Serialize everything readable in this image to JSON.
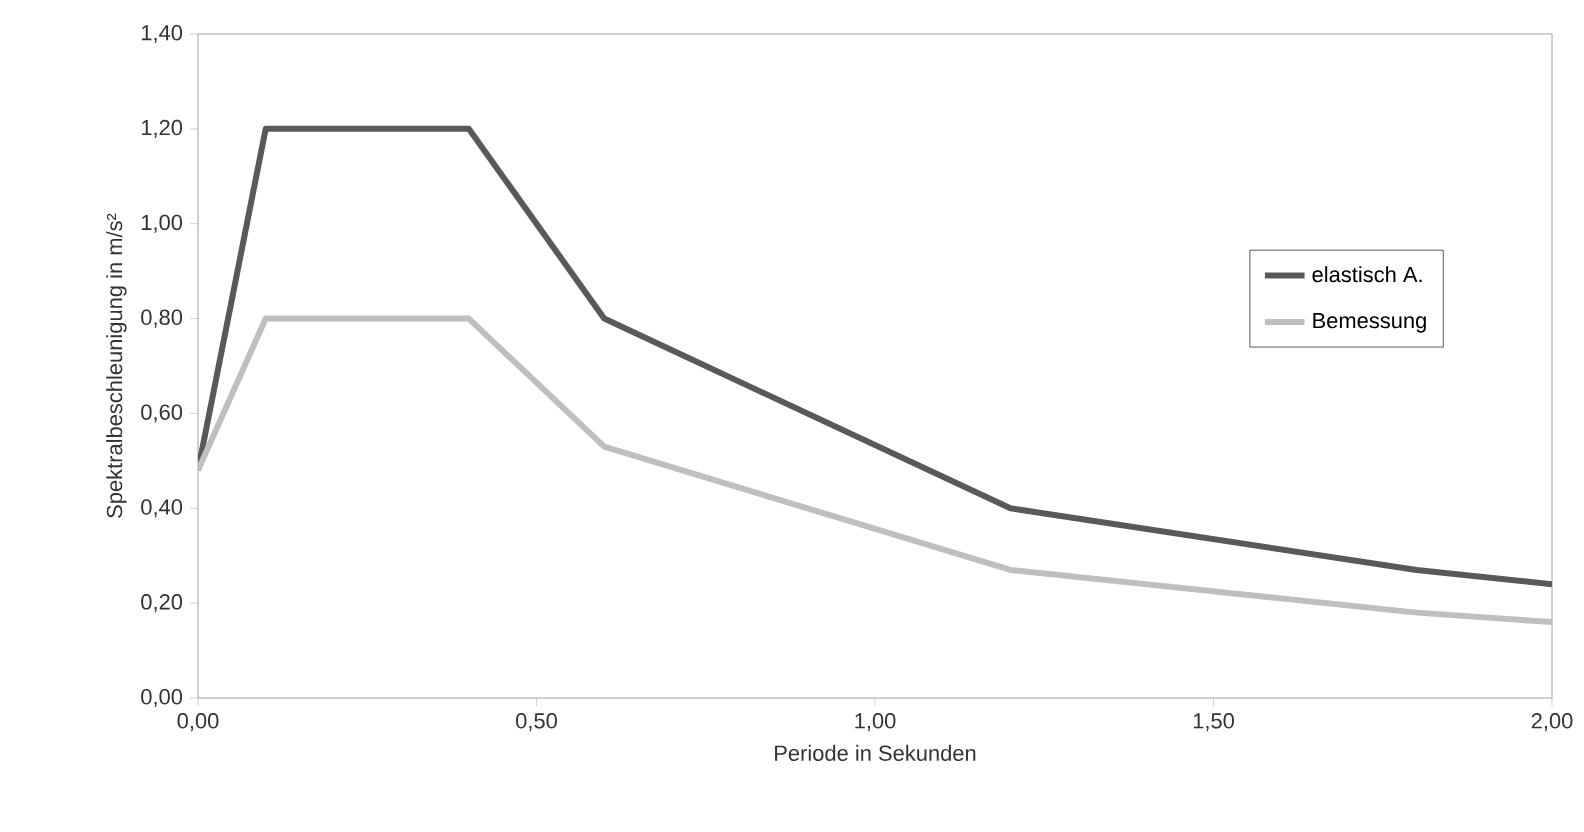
{
  "chart_data": {
    "type": "line",
    "xlabel": "Periode in Sekunden",
    "ylabel": "Spektralbeschleunigung in m/s²",
    "xlim": [
      0,
      2
    ],
    "ylim": [
      0,
      1.4
    ],
    "xticks": [
      {
        "value": 0,
        "label": "0,00"
      },
      {
        "value": 0.5,
        "label": "0,50"
      },
      {
        "value": 1,
        "label": "1,00"
      },
      {
        "value": 1.5,
        "label": "1,50"
      },
      {
        "value": 2,
        "label": "2,00"
      }
    ],
    "yticks": [
      {
        "value": 0,
        "label": "0,00"
      },
      {
        "value": 0.2,
        "label": "0,20"
      },
      {
        "value": 0.4,
        "label": "0,40"
      },
      {
        "value": 0.6,
        "label": "0,60"
      },
      {
        "value": 0.8,
        "label": "0,80"
      },
      {
        "value": 1,
        "label": "1,00"
      },
      {
        "value": 1.2,
        "label": "1,20"
      },
      {
        "value": 1.4,
        "label": "1,40"
      }
    ],
    "grid": false,
    "legend": "right",
    "marker": "none",
    "line_style": "solid",
    "x": [
      0,
      0.1,
      0.4,
      0.6,
      1.2,
      1.8,
      2.0
    ],
    "series": [
      {
        "name": "elastisch A.",
        "color": "#595959",
        "values": [
          0.48,
          1.2,
          1.2,
          0.8,
          0.4,
          0.27,
          0.24
        ]
      },
      {
        "name": "Bemessung",
        "color": "#bfbfbf",
        "values": [
          0.48,
          0.8,
          0.8,
          0.53,
          0.27,
          0.18,
          0.16
        ]
      }
    ]
  }
}
